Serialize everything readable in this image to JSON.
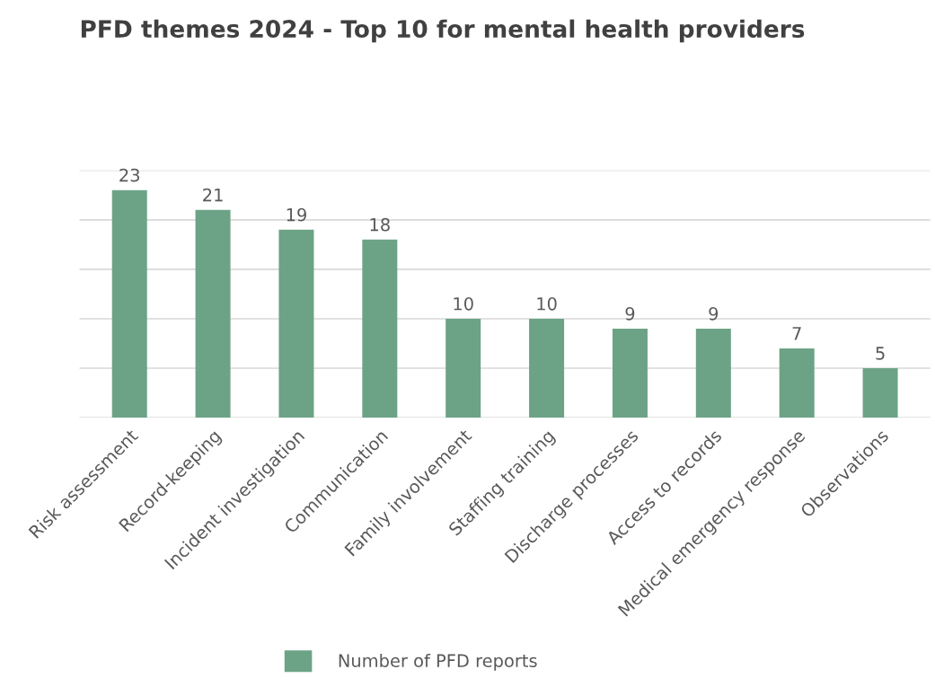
{
  "chart_data": {
    "type": "bar",
    "title": "PFD themes 2024 - Top 10 for mental health providers",
    "categories": [
      "Risk assessment",
      "Record-keeping",
      "Incident investigation",
      "Communication",
      "Family involvement",
      "Staffing training",
      "Discharge processes",
      "Access to records",
      "Medical emergency response",
      "Observations"
    ],
    "series": [
      {
        "name": "Number of PFD reports",
        "color": "#6ca386",
        "values": [
          23,
          21,
          19,
          18,
          10,
          10,
          9,
          9,
          7,
          5
        ]
      }
    ],
    "ylim": [
      0,
      25
    ],
    "yticks": [
      {
        "value": 0,
        "label": null
      },
      {
        "value": 5,
        "label": null
      },
      {
        "value": 10,
        "label": null
      },
      {
        "value": 15,
        "label": null
      },
      {
        "value": 20,
        "label": null
      },
      {
        "value": 25,
        "label": null
      }
    ],
    "tick_labels": "x",
    "grid": "y",
    "data_labels": true,
    "legend": "bottom"
  }
}
